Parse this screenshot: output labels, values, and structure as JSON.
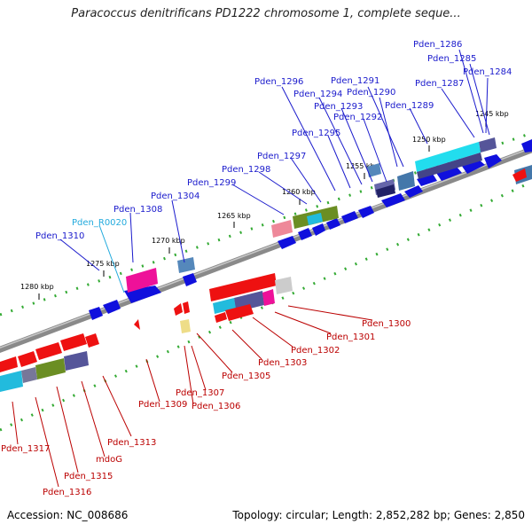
{
  "title": "Paracoccus denitrificans PD1222 chromosome 1, complete seque...",
  "accession": "Accession: NC_008686",
  "topology": "Topology: circular; Length: 2,852,282 bp; Genes: 2,850",
  "ticks": [
    "1245 kbp",
    "1250 kbp",
    "1255 kbp",
    "1260 kbp",
    "1265 kbp",
    "1270 kbp",
    "1275 kbp",
    "1280 kbp"
  ],
  "colors": {
    "forward_cds": "#1010dd",
    "reverse_cds": "#ee1111",
    "rna": "#22bbdd",
    "backbone": "#8a8a8a",
    "dots": "#33aa33",
    "label_forward": "#1a1acc",
    "label_reverse": "#bb0000",
    "label_rna": "#22aadd"
  },
  "labels_top": [
    "Pden_1286",
    "Pden_1285",
    "Pden_1284",
    "Pden_1291",
    "Pden_1296",
    "Pden_1290",
    "Pden_1294",
    "Pden_1287",
    "Pden_1293",
    "Pden_1289",
    "Pden_1292",
    "Pden_1295",
    "Pden_1297",
    "Pden_1298",
    "Pden_1299",
    "Pden_1304",
    "Pden_1308",
    "Pden_R0020",
    "Pden_1310"
  ],
  "labels_bottom": [
    "Pden_1300",
    "Pden_1301",
    "Pden_1302",
    "Pden_1303",
    "Pden_1305",
    "Pden_1307",
    "Pden_1306",
    "Pden_1309",
    "Pden_1313",
    "mdoG",
    "Pden_1315",
    "Pden_1317",
    "Pden_1316"
  ]
}
